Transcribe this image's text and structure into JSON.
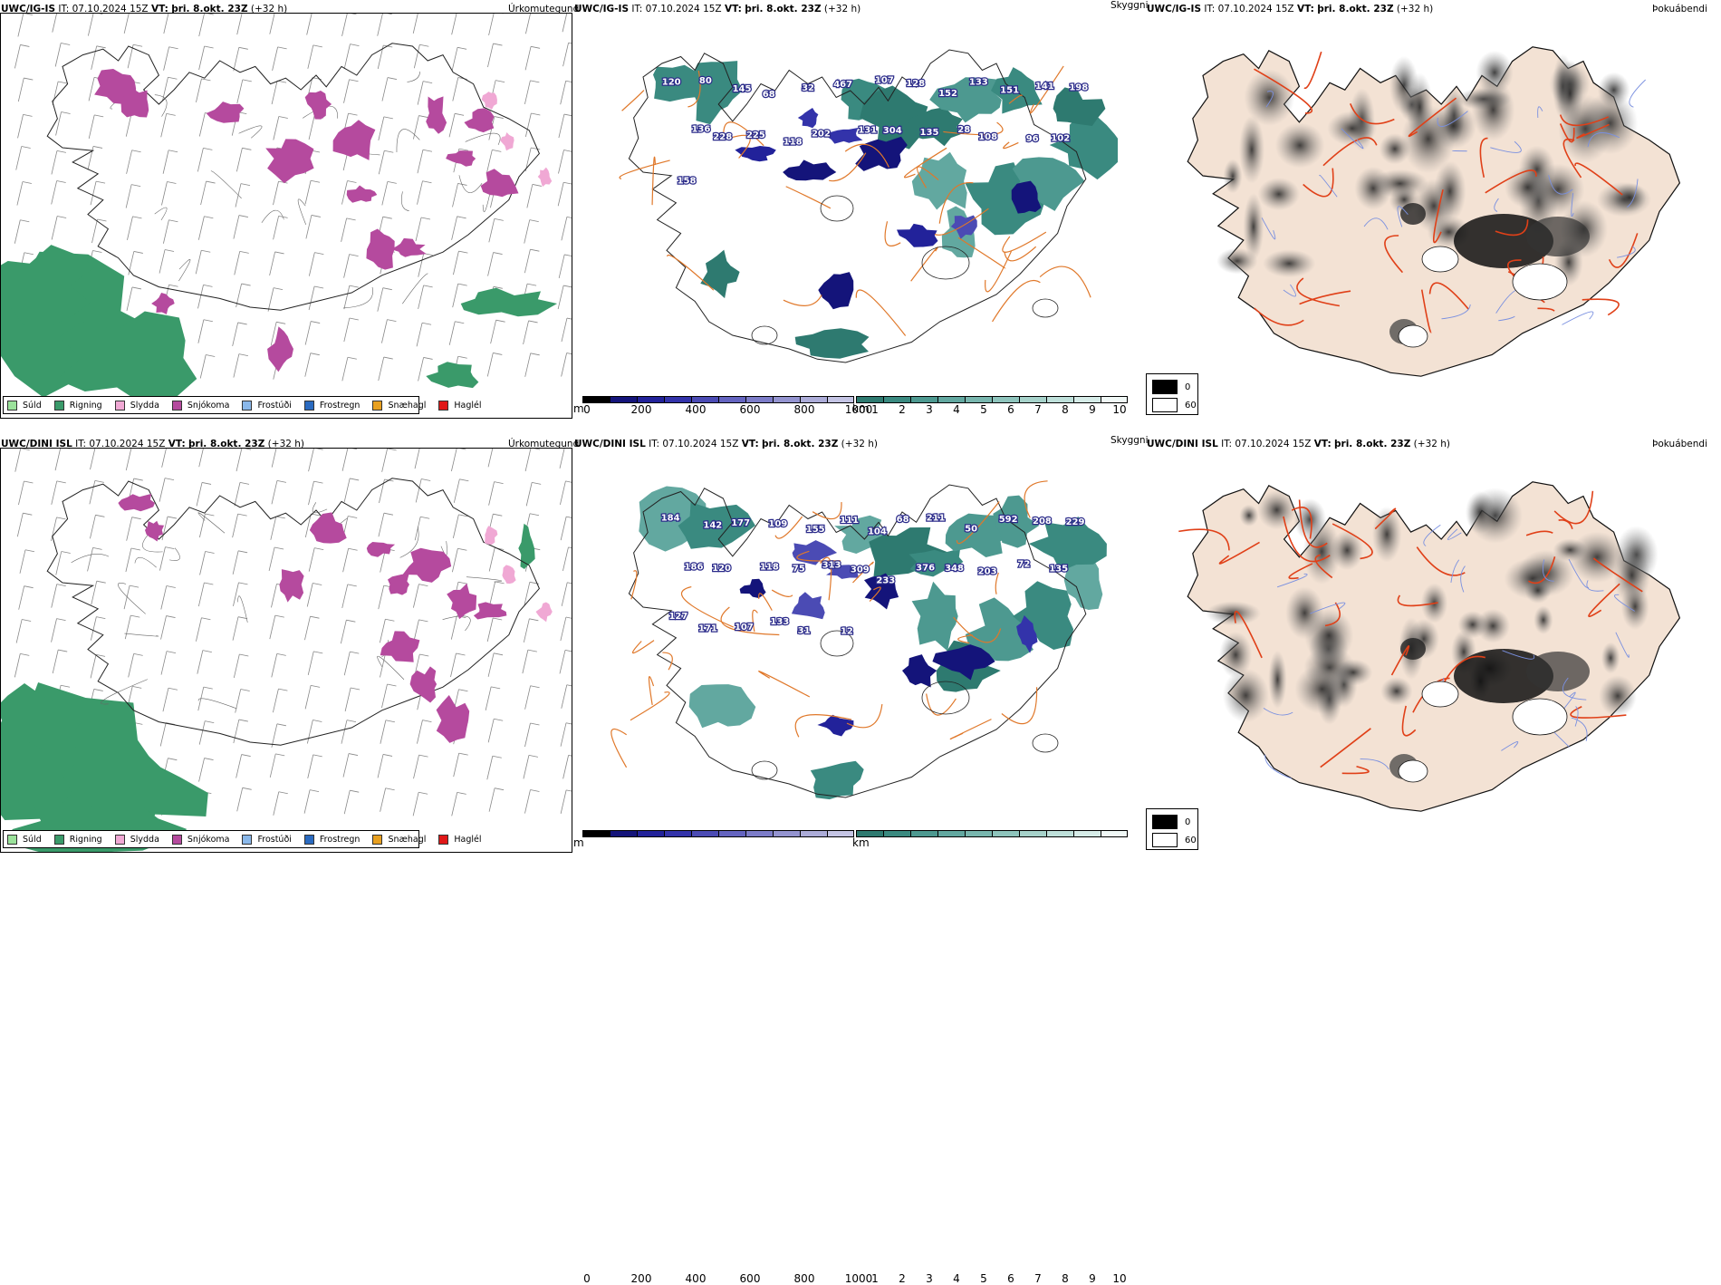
{
  "rows": [
    {
      "model": "UWC/IG-IS",
      "it_label": "IT:",
      "it": "07.10.2024 15Z",
      "vt_label": "VT:",
      "vt": "þri. 8.okt. 23Z",
      "lead": "(+32 h)",
      "panel_names": [
        "Úrkomutegund",
        "Skyggni",
        "Þokuábendi"
      ],
      "cloud_labels": [
        "120",
        "80",
        "145",
        "68",
        "32",
        "467",
        "107",
        "128",
        "152",
        "133",
        "151",
        "141",
        "198",
        "136",
        "228",
        "225",
        "118",
        "202",
        "131",
        "304",
        "135",
        "28",
        "108",
        "96",
        "102",
        "158"
      ],
      "precip_legend": [
        {
          "label": "Súld",
          "color": "#9be29b"
        },
        {
          "label": "Rigning",
          "color": "#3a9a6a"
        },
        {
          "label": "Slydda",
          "color": "#f0a8d4"
        },
        {
          "label": "Snjókoma",
          "color": "#b54a9e"
        },
        {
          "label": "Frostúði",
          "color": "#8ab8ea"
        },
        {
          "label": "Frostregn",
          "color": "#2a6ac0"
        },
        {
          "label": "Snæhagl",
          "color": "#e8a020"
        },
        {
          "label": "Haglél",
          "color": "#e01818"
        }
      ],
      "ceiling_bar": {
        "unit": "m",
        "ticks": [
          "0",
          "200",
          "400",
          "600",
          "800",
          "1000"
        ]
      },
      "vis_bar": {
        "unit": "km",
        "ticks": [
          "1",
          "2",
          "3",
          "4",
          "5",
          "6",
          "7",
          "8",
          "9",
          "10"
        ]
      },
      "fog_legend": [
        {
          "label": "0",
          "color": "#000000"
        },
        {
          "label": "60",
          "color": "#ffffff"
        }
      ]
    },
    {
      "model": "UWC/DINI ISL",
      "it_label": "IT:",
      "it": "07.10.2024 15Z",
      "vt_label": "VT:",
      "vt": "þri. 8.okt. 23Z",
      "lead": "(+32 h)",
      "panel_names": [
        "Úrkomutegund",
        "Skyggni",
        "Þokuábendi"
      ],
      "cloud_labels": [
        "184",
        "142",
        "177",
        "109",
        "155",
        "111",
        "104",
        "68",
        "211",
        "50",
        "592",
        "208",
        "229",
        "186",
        "120",
        "118",
        "75",
        "313",
        "309",
        "233",
        "376",
        "348",
        "203",
        "72",
        "135",
        "127",
        "171",
        "107",
        "133",
        "31",
        "12"
      ],
      "precip_legend": [
        {
          "label": "Súld",
          "color": "#9be29b"
        },
        {
          "label": "Rigning",
          "color": "#3a9a6a"
        },
        {
          "label": "Slydda",
          "color": "#f0a8d4"
        },
        {
          "label": "Snjókoma",
          "color": "#b54a9e"
        },
        {
          "label": "Frostúði",
          "color": "#8ab8ea"
        },
        {
          "label": "Frostregn",
          "color": "#2a6ac0"
        },
        {
          "label": "Snæhagl",
          "color": "#e8a020"
        },
        {
          "label": "Haglél",
          "color": "#e01818"
        }
      ],
      "ceiling_bar": {
        "unit": "m",
        "ticks": [
          "0",
          "200",
          "400",
          "600",
          "800",
          "1000"
        ]
      },
      "vis_bar": {
        "unit": "km",
        "ticks": [
          "1",
          "2",
          "3",
          "4",
          "5",
          "6",
          "7",
          "8",
          "9",
          "10"
        ]
      },
      "fog_legend": [
        {
          "label": "0",
          "color": "#000000"
        },
        {
          "label": "60",
          "color": "#ffffff"
        }
      ]
    }
  ],
  "colors": {
    "rain": "#3a9a6a",
    "snow": "#b54a9e",
    "sleet": "#f0a8d4",
    "ceiling_ramp": [
      "#000000",
      "#14147a",
      "#22229a",
      "#3333aa",
      "#4b4bb4",
      "#6464c0",
      "#7c7cc8",
      "#9494d0",
      "#acacd8",
      "#c4c4e4"
    ],
    "vis_ramp": [
      "#2e7a70",
      "#3a8a80",
      "#4d9990",
      "#62a8a0",
      "#78b6ae",
      "#8ec4bc",
      "#a6d2ca",
      "#bee0da",
      "#d6ece8",
      "#f0f8f6"
    ],
    "road": "#e0782a",
    "fog_land": "#f3e2d4",
    "fog_road": "#e04018",
    "river": "#7a90e0"
  }
}
